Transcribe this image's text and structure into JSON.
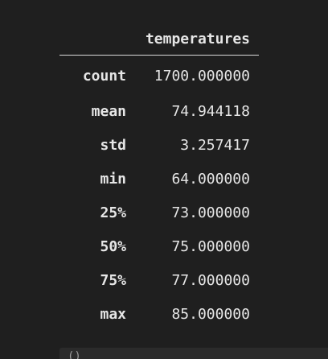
{
  "table": {
    "column_header": "temperatures",
    "rows": [
      {
        "label": "count",
        "value": "1700.000000"
      },
      {
        "label": "mean",
        "value": "74.944118"
      },
      {
        "label": "std",
        "value": "3.257417"
      },
      {
        "label": "min",
        "value": "64.000000"
      },
      {
        "label": "25%",
        "value": "73.000000"
      },
      {
        "label": "50%",
        "value": "75.000000"
      },
      {
        "label": "75%",
        "value": "77.000000"
      },
      {
        "label": "max",
        "value": "85.000000"
      }
    ]
  },
  "next_cell": {
    "prompt": "()"
  }
}
